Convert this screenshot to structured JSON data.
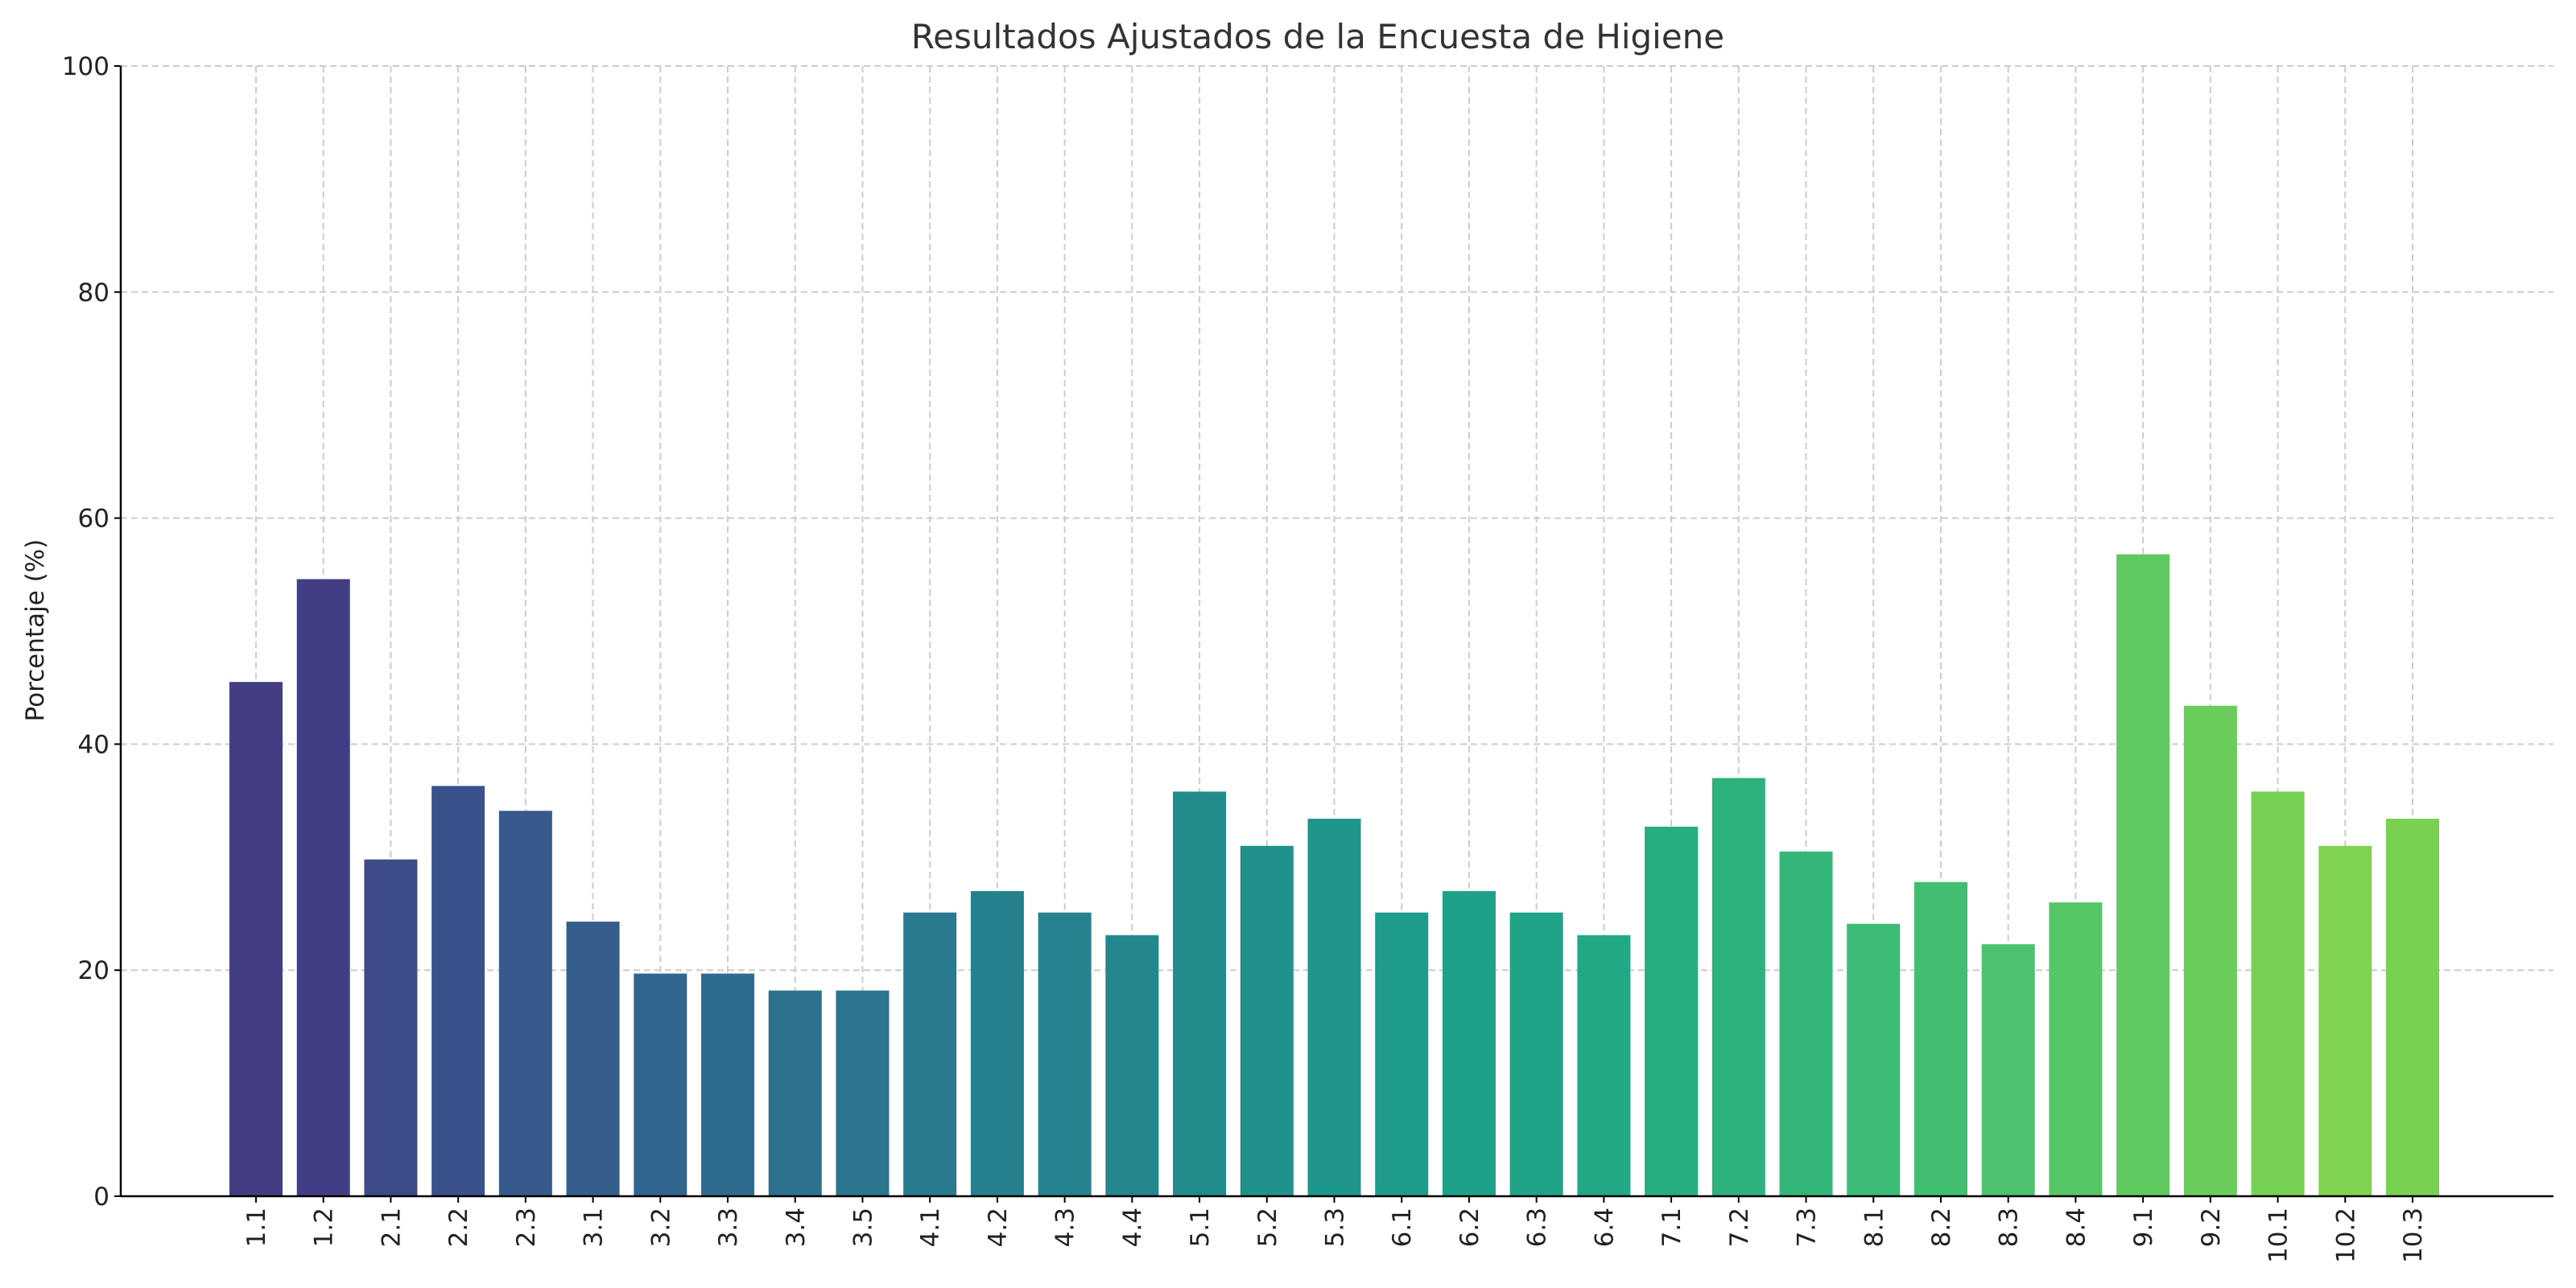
{
  "chart_data": {
    "type": "bar",
    "title": "Resultados Ajustados de la Encuesta de Higiene",
    "xlabel": "",
    "ylabel": "Porcentaje (%)",
    "ylim": [
      0,
      100
    ],
    "yticks": [
      0,
      20,
      40,
      60,
      80,
      100
    ],
    "grid": true,
    "categories": [
      "1.1",
      "1.2",
      "2.1",
      "2.2",
      "2.3",
      "3.1",
      "3.2",
      "3.3",
      "3.4",
      "3.5",
      "4.1",
      "4.2",
      "4.3",
      "4.4",
      "5.1",
      "5.2",
      "5.3",
      "6.1",
      "6.2",
      "6.3",
      "6.4",
      "7.1",
      "7.2",
      "7.3",
      "8.1",
      "8.2",
      "8.3",
      "8.4",
      "9.1",
      "9.2",
      "10.1",
      "10.2",
      "10.3"
    ],
    "values": [
      45.5,
      54.6,
      29.8,
      36.3,
      34.1,
      24.3,
      19.7,
      19.7,
      18.2,
      18.2,
      25.1,
      27.0,
      25.1,
      23.1,
      35.8,
      31.0,
      33.4,
      25.1,
      27.0,
      25.1,
      23.1,
      32.7,
      37.0,
      30.5,
      24.1,
      27.8,
      22.3,
      26.0,
      56.8,
      43.4,
      35.8,
      31.0,
      33.4
    ],
    "colors": [
      "#433d84",
      "#423e86",
      "#3d4c89",
      "#3b518b",
      "#38598c",
      "#355e8d",
      "#32658e",
      "#2f6b8e",
      "#2d718e",
      "#2b758e",
      "#297a8e",
      "#27808e",
      "#26828e",
      "#24878e",
      "#228c8d",
      "#21918c",
      "#1f968b",
      "#1f9b8a",
      "#1fa088",
      "#20a386",
      "#22a884",
      "#26ad81",
      "#2db27d",
      "#34b679",
      "#3bbb75",
      "#42be71",
      "#4cc26c",
      "#56c667",
      "#60ca60",
      "#6acd5b",
      "#75d054",
      "#7fd34e",
      "#7ad151"
    ]
  }
}
